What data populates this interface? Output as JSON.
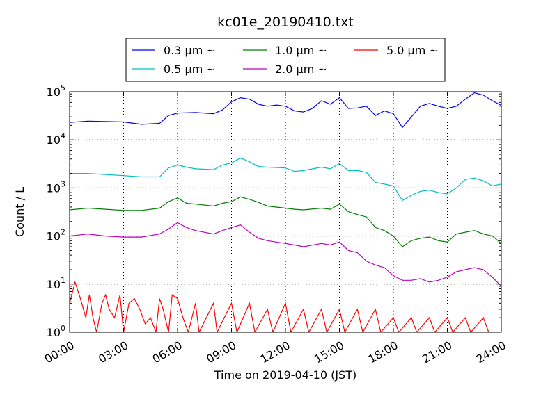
{
  "chart_data": {
    "type": "line",
    "title": "kc01e_20190410.txt",
    "xlabel": "Time on 2019-04-10 (JST)",
    "ylabel": "Count / L",
    "yscale": "log",
    "ylim": [
      1,
      100000
    ],
    "xlim": [
      0,
      24
    ],
    "grid": true,
    "legend_position": "top-center",
    "x_ticks": [
      "00:00",
      "03:00",
      "06:00",
      "09:00",
      "12:00",
      "15:00",
      "18:00",
      "21:00",
      "24:00"
    ],
    "y_ticks": [
      {
        "base": "10",
        "exp": "0"
      },
      {
        "base": "10",
        "exp": "1"
      },
      {
        "base": "10",
        "exp": "2"
      },
      {
        "base": "10",
        "exp": "3"
      },
      {
        "base": "10",
        "exp": "4"
      },
      {
        "base": "10",
        "exp": "5"
      }
    ],
    "series": [
      {
        "name": "0.3 μm ~",
        "color": "#0000ff",
        "points": [
          [
            0,
            23000
          ],
          [
            1,
            24500
          ],
          [
            2,
            24000
          ],
          [
            3,
            23500
          ],
          [
            4,
            21000
          ],
          [
            5,
            22000
          ],
          [
            5.5,
            32000
          ],
          [
            6,
            36000
          ],
          [
            7,
            37000
          ],
          [
            8,
            35000
          ],
          [
            8.5,
            42000
          ],
          [
            9,
            62000
          ],
          [
            9.5,
            75000
          ],
          [
            10,
            70000
          ],
          [
            10.5,
            55000
          ],
          [
            11,
            50000
          ],
          [
            11.5,
            53000
          ],
          [
            12,
            50000
          ],
          [
            12.5,
            40000
          ],
          [
            13,
            38000
          ],
          [
            13.5,
            45000
          ],
          [
            14,
            65000
          ],
          [
            14.5,
            55000
          ],
          [
            15,
            75000
          ],
          [
            15.5,
            45000
          ],
          [
            16,
            46000
          ],
          [
            16.5,
            50000
          ],
          [
            17,
            32000
          ],
          [
            17.5,
            40000
          ],
          [
            18,
            35000
          ],
          [
            18.5,
            18000
          ],
          [
            19,
            30000
          ],
          [
            19.5,
            50000
          ],
          [
            20,
            57000
          ],
          [
            20.5,
            50000
          ],
          [
            21,
            45000
          ],
          [
            21.5,
            50000
          ],
          [
            22,
            70000
          ],
          [
            22.5,
            95000
          ],
          [
            23,
            85000
          ],
          [
            23.5,
            65000
          ],
          [
            24,
            52000
          ]
        ]
      },
      {
        "name": "0.5 μm ~",
        "color": "#00bfbf",
        "points": [
          [
            0,
            2000
          ],
          [
            1,
            2000
          ],
          [
            2,
            1900
          ],
          [
            3,
            1800
          ],
          [
            4,
            1700
          ],
          [
            5,
            1700
          ],
          [
            5.5,
            2600
          ],
          [
            6,
            3000
          ],
          [
            6.5,
            2700
          ],
          [
            7,
            2500
          ],
          [
            8,
            2400
          ],
          [
            8.5,
            3000
          ],
          [
            9,
            3300
          ],
          [
            9.5,
            4200
          ],
          [
            10,
            3500
          ],
          [
            10.5,
            2800
          ],
          [
            11,
            2700
          ],
          [
            12,
            2600
          ],
          [
            12.5,
            2200
          ],
          [
            13,
            2300
          ],
          [
            14,
            2700
          ],
          [
            14.5,
            2500
          ],
          [
            15,
            3200
          ],
          [
            15.5,
            2300
          ],
          [
            16,
            2300
          ],
          [
            16.5,
            2100
          ],
          [
            17,
            1300
          ],
          [
            17.5,
            1200
          ],
          [
            18,
            1100
          ],
          [
            18.5,
            550
          ],
          [
            19,
            700
          ],
          [
            19.5,
            850
          ],
          [
            20,
            900
          ],
          [
            20.5,
            800
          ],
          [
            21,
            750
          ],
          [
            21.5,
            1000
          ],
          [
            22,
            1500
          ],
          [
            22.5,
            1600
          ],
          [
            23,
            1400
          ],
          [
            23.5,
            1100
          ],
          [
            24,
            1200
          ]
        ]
      },
      {
        "name": "1.0 μm ~",
        "color": "#008000",
        "points": [
          [
            0,
            350
          ],
          [
            1,
            380
          ],
          [
            2,
            360
          ],
          [
            3,
            340
          ],
          [
            4,
            340
          ],
          [
            5,
            380
          ],
          [
            5.5,
            520
          ],
          [
            6,
            620
          ],
          [
            6.5,
            480
          ],
          [
            7,
            460
          ],
          [
            8,
            420
          ],
          [
            8.5,
            480
          ],
          [
            9,
            520
          ],
          [
            9.5,
            650
          ],
          [
            10,
            580
          ],
          [
            10.5,
            500
          ],
          [
            11,
            420
          ],
          [
            12,
            380
          ],
          [
            12.5,
            360
          ],
          [
            13,
            350
          ],
          [
            14,
            380
          ],
          [
            14.5,
            360
          ],
          [
            15,
            460
          ],
          [
            15.5,
            320
          ],
          [
            16,
            280
          ],
          [
            16.5,
            250
          ],
          [
            17,
            150
          ],
          [
            17.5,
            130
          ],
          [
            18,
            100
          ],
          [
            18.5,
            60
          ],
          [
            19,
            80
          ],
          [
            19.5,
            90
          ],
          [
            20,
            95
          ],
          [
            20.5,
            80
          ],
          [
            21,
            75
          ],
          [
            21.5,
            110
          ],
          [
            22,
            120
          ],
          [
            22.5,
            130
          ],
          [
            23,
            110
          ],
          [
            23.5,
            100
          ],
          [
            24,
            70
          ]
        ]
      },
      {
        "name": "2.0 μm ~",
        "color": "#bf00bf",
        "points": [
          [
            0,
            100
          ],
          [
            1,
            110
          ],
          [
            2,
            100
          ],
          [
            3,
            95
          ],
          [
            4,
            95
          ],
          [
            5,
            110
          ],
          [
            5.5,
            140
          ],
          [
            6,
            190
          ],
          [
            6.5,
            150
          ],
          [
            7,
            130
          ],
          [
            8,
            110
          ],
          [
            8.5,
            130
          ],
          [
            9,
            150
          ],
          [
            9.5,
            170
          ],
          [
            10,
            120
          ],
          [
            10.5,
            90
          ],
          [
            11,
            80
          ],
          [
            12,
            70
          ],
          [
            12.5,
            65
          ],
          [
            13,
            60
          ],
          [
            14,
            70
          ],
          [
            14.5,
            65
          ],
          [
            15,
            75
          ],
          [
            15.5,
            50
          ],
          [
            16,
            45
          ],
          [
            16.5,
            30
          ],
          [
            17,
            25
          ],
          [
            17.5,
            22
          ],
          [
            18,
            15
          ],
          [
            18.5,
            12
          ],
          [
            19,
            12
          ],
          [
            19.5,
            13
          ],
          [
            20,
            11
          ],
          [
            20.5,
            12
          ],
          [
            21,
            14
          ],
          [
            21.5,
            18
          ],
          [
            22,
            20
          ],
          [
            22.5,
            22
          ],
          [
            23,
            20
          ],
          [
            23.5,
            14
          ],
          [
            24,
            9
          ]
        ]
      },
      {
        "name": "5.0 μm ~",
        "color": "#ff0000",
        "points": [
          [
            0,
            4
          ],
          [
            0.3,
            11
          ],
          [
            0.6,
            5
          ],
          [
            0.9,
            2
          ],
          [
            1.1,
            6
          ],
          [
            1.3,
            2
          ],
          [
            1.5,
            1
          ],
          [
            1.8,
            4
          ],
          [
            2,
            6
          ],
          [
            2.2,
            3
          ],
          [
            2.5,
            2
          ],
          [
            2.8,
            6
          ],
          [
            3,
            1
          ],
          [
            3.3,
            4
          ],
          [
            3.6,
            5
          ],
          [
            3.9,
            3
          ],
          [
            4.2,
            1.5
          ],
          [
            4.5,
            2
          ],
          [
            4.8,
            1
          ],
          [
            5,
            5
          ],
          [
            5.2,
            3
          ],
          [
            5.5,
            1
          ],
          [
            5.7,
            6
          ],
          [
            6,
            5
          ],
          [
            6.3,
            2
          ],
          [
            6.6,
            1
          ],
          [
            7,
            4
          ],
          [
            7.2,
            1
          ],
          [
            8,
            4
          ],
          [
            8.2,
            1
          ],
          [
            9,
            4
          ],
          [
            9.3,
            1
          ],
          [
            10,
            4
          ],
          [
            10.3,
            1
          ],
          [
            11,
            3
          ],
          [
            11.3,
            1
          ],
          [
            12,
            4
          ],
          [
            12.3,
            1
          ],
          [
            13,
            3
          ],
          [
            13.3,
            1
          ],
          [
            14,
            3
          ],
          [
            14.3,
            1
          ],
          [
            15,
            3
          ],
          [
            15.3,
            1
          ],
          [
            16,
            3
          ],
          [
            16.3,
            1
          ],
          [
            17,
            3
          ],
          [
            17.3,
            1
          ],
          [
            18,
            2
          ],
          [
            18.3,
            1
          ],
          [
            19,
            2
          ],
          [
            19.3,
            1
          ],
          [
            20,
            2
          ],
          [
            20.3,
            1
          ],
          [
            21,
            2
          ],
          [
            21.3,
            1
          ],
          [
            22,
            2
          ],
          [
            22.3,
            1
          ],
          [
            23,
            2
          ],
          [
            23.3,
            1
          ],
          [
            24,
            1
          ]
        ]
      }
    ]
  }
}
